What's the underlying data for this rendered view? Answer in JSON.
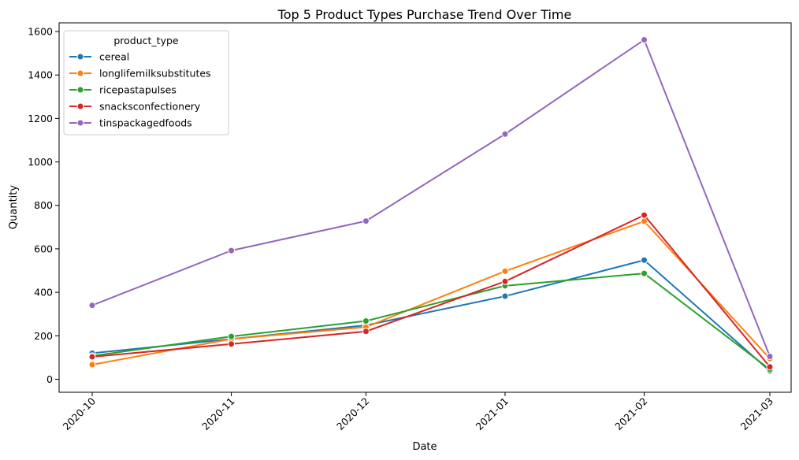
{
  "chart_data": {
    "type": "line",
    "title": "Top 5 Product Types Purchase Trend Over Time",
    "xlabel": "Date",
    "ylabel": "Quantity",
    "x": [
      "2020-10",
      "2020-11",
      "2020-12",
      "2021-01",
      "2021-02",
      "2021-03"
    ],
    "x_tick_dates": [
      "2020-10-01",
      "2020-11-01",
      "2020-12-01",
      "2021-01-01",
      "2021-02-01",
      "2021-03-01"
    ],
    "ylim": [
      -60,
      1640
    ],
    "yticks": [
      0,
      200,
      400,
      600,
      800,
      1000,
      1200,
      1400,
      1600
    ],
    "grid": false,
    "legend": {
      "title": "product_type",
      "placement": "upper-left"
    },
    "series": [
      {
        "name": "cereal",
        "color": "#1f77b4",
        "values": [
          120,
          185,
          248,
          382,
          548,
          38
        ]
      },
      {
        "name": "longlifemilksubstitutes",
        "color": "#ff7f0e",
        "values": [
          67,
          185,
          240,
          497,
          727,
          95
        ]
      },
      {
        "name": "ricepastapulses",
        "color": "#2ca02c",
        "values": [
          107,
          197,
          268,
          430,
          487,
          45
        ]
      },
      {
        "name": "snacksconfectionery",
        "color": "#d62728",
        "values": [
          103,
          162,
          220,
          450,
          755,
          57
        ]
      },
      {
        "name": "tinspackagedfoods",
        "color": "#9467bd",
        "values": [
          340,
          592,
          728,
          1128,
          1562,
          105
        ]
      }
    ]
  }
}
